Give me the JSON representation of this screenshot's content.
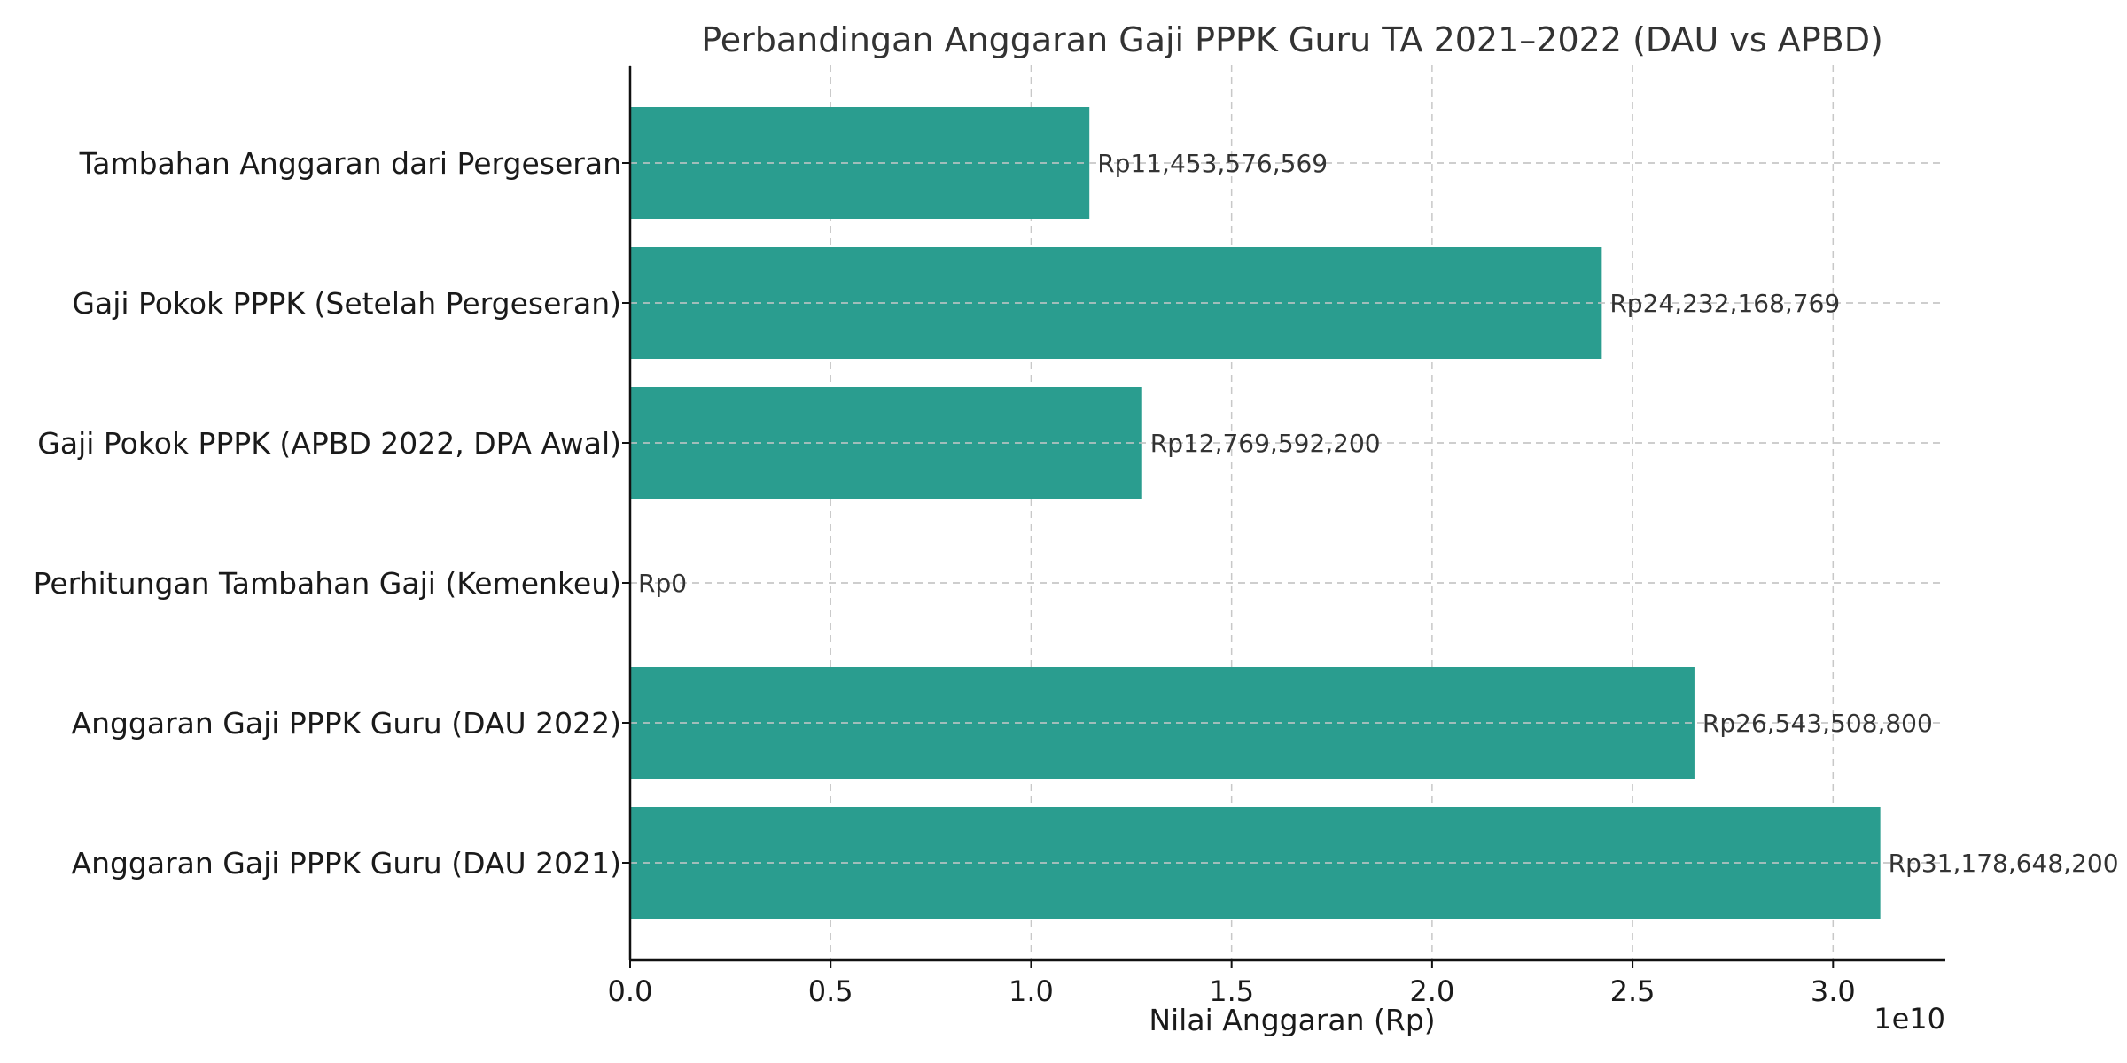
{
  "chart_data": {
    "type": "bar",
    "orientation": "horizontal",
    "title": "Perbandingan Anggaran Gaji PPPK Guru TA 2021–2022 (DAU vs APBD)",
    "xlabel": "Nilai Anggaran (Rp)",
    "x_offset_label": "1e10",
    "categories": [
      "Anggaran Gaji PPPK Guru (DAU 2021)",
      "Anggaran Gaji PPPK Guru (DAU 2022)",
      "Perhitungan Tambahan Gaji (Kemenkeu)",
      "Gaji Pokok PPPK (APBD 2022, DPA Awal)",
      "Gaji Pokok PPPK (Setelah Pergeseran)",
      "Tambahan Anggaran dari Pergeseran"
    ],
    "values": [
      31178648200,
      26543508800,
      0,
      12769592200,
      24232168769,
      11453576569
    ],
    "value_labels": [
      "Rp31,178,648,200",
      "Rp26,543,508,800",
      "Rp0",
      "Rp12,769,592,200",
      "Rp24,232,168,769",
      "Rp11,453,576,569"
    ],
    "xticks": [
      0,
      0.5,
      1.0,
      1.5,
      2.0,
      2.5,
      3.0
    ],
    "xtick_labels": [
      "0.0",
      "0.5",
      "1.0",
      "1.5",
      "2.0",
      "2.5",
      "3.0"
    ],
    "xlim": [
      0,
      32800000000
    ],
    "grid": true,
    "bar_color": "#2a9d8f"
  }
}
